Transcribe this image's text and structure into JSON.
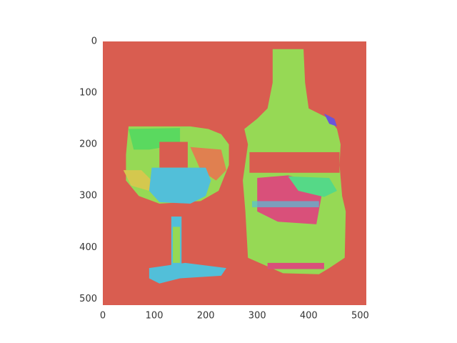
{
  "chart_data": {
    "type": "image",
    "xlim": [
      0,
      512
    ],
    "ylim": [
      512,
      0
    ],
    "xticks": [
      0,
      100,
      200,
      300,
      400,
      500
    ],
    "yticks": [
      0,
      100,
      200,
      300,
      400,
      500
    ],
    "grid": false
  }
}
